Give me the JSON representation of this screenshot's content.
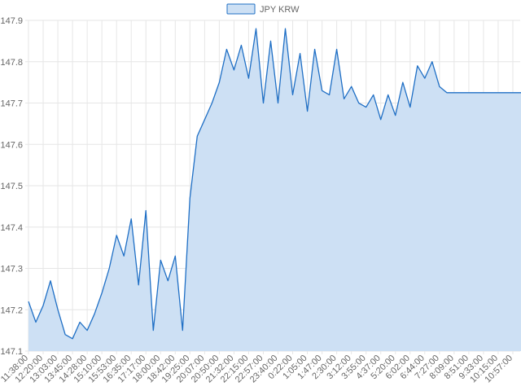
{
  "chart_data": {
    "type": "area",
    "title": "",
    "xlabel": "",
    "ylabel": "",
    "ylim": [
      147.1,
      147.9
    ],
    "yticks": [
      147.1,
      147.2,
      147.3,
      147.4,
      147.5,
      147.6,
      147.7,
      147.8,
      147.9
    ],
    "grid": true,
    "legend_position": "top-center",
    "colors": {
      "line": "#1f6fc5",
      "fill": "#cde0f4",
      "grid": "#e6e6e6",
      "text": "#666666"
    },
    "xtick_labels": [
      "11:38:00",
      "12:20:00",
      "13:03:00",
      "13:45:00",
      "14:28:00",
      "15:10:00",
      "15:53:00",
      "16:35:00",
      "17:17:00",
      "18:00:00",
      "18:42:00",
      "19:25:00",
      "20:07:00",
      "20:50:00",
      "21:32:00",
      "22:15:00",
      "22:57:00",
      "23:40:00",
      "0:22:00",
      "1:05:00",
      "1:47:00",
      "2:30:00",
      "3:12:00",
      "3:55:00",
      "4:37:00",
      "5:20:00",
      "6:02:00",
      "6:44:00",
      "7:27:00",
      "8:09:00",
      "8:51:00",
      "9:33:00",
      "10:15:00",
      "10:57:00"
    ],
    "series": [
      {
        "name": "JPY KRW",
        "x_index": [
          0,
          0.5,
          1,
          1.5,
          2,
          2.5,
          3,
          3.5,
          4,
          4.5,
          5,
          5.5,
          6,
          6.5,
          7,
          7.5,
          8,
          8.5,
          9,
          9.5,
          10,
          10.5,
          11,
          11.5,
          12,
          12.5,
          13,
          13.5,
          14,
          14.5,
          15,
          15.5,
          16,
          16.5,
          17,
          17.5,
          18,
          18.5,
          19,
          19.5,
          20,
          20.5,
          21,
          21.5,
          22,
          22.5,
          23,
          23.5,
          24,
          24.5,
          25,
          25.5,
          26,
          26.5,
          27,
          27.5,
          28,
          28.5,
          29,
          29.5,
          30,
          30.5,
          31,
          31.5,
          32,
          32.5,
          33,
          33.5,
          34,
          34.5,
          35
        ],
        "values": [
          147.22,
          147.17,
          147.21,
          147.27,
          147.2,
          147.14,
          147.13,
          147.17,
          147.15,
          147.19,
          147.24,
          147.3,
          147.38,
          147.33,
          147.42,
          147.26,
          147.44,
          147.15,
          147.32,
          147.27,
          147.33,
          147.15,
          147.47,
          147.62,
          147.66,
          147.7,
          147.75,
          147.83,
          147.78,
          147.84,
          147.76,
          147.88,
          147.7,
          147.85,
          147.7,
          147.88,
          147.72,
          147.82,
          147.68,
          147.83,
          147.73,
          147.72,
          147.83,
          147.71,
          147.74,
          147.7,
          147.69,
          147.72,
          147.66,
          147.72,
          147.67,
          147.75,
          147.69,
          147.79,
          147.76,
          147.8,
          147.74,
          147.725,
          147.725,
          147.725,
          147.725,
          147.725,
          147.725,
          147.725,
          147.725,
          147.725,
          147.725,
          147.725,
          147.725,
          147.725,
          147.725
        ]
      }
    ]
  }
}
